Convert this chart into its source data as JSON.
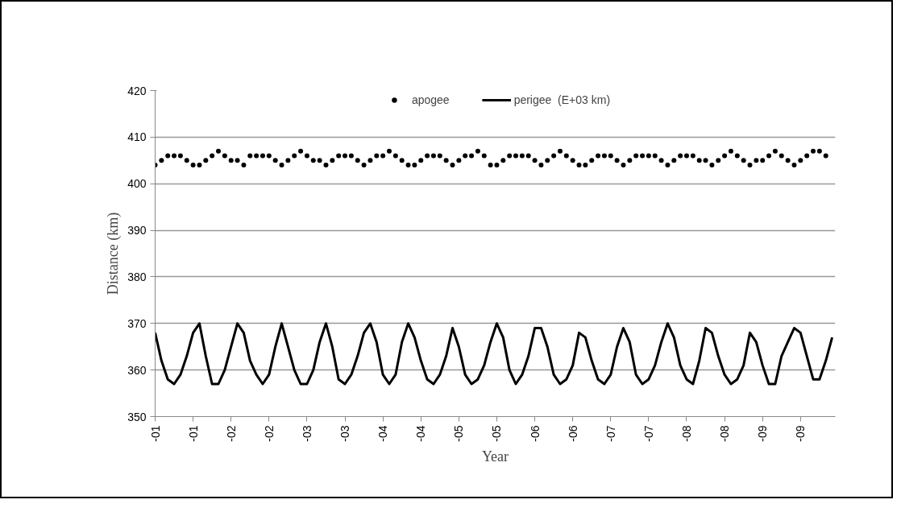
{
  "chart_data": {
    "type": "line",
    "xlabel": "Year",
    "ylabel": "Distance (km)",
    "categories": [
      "-01",
      null,
      null,
      null,
      null,
      null,
      "-01",
      null,
      null,
      null,
      null,
      null,
      "-02",
      null,
      null,
      null,
      null,
      null,
      "-02",
      null,
      null,
      null,
      null,
      null,
      "-03",
      null,
      null,
      null,
      null,
      null,
      "-03",
      null,
      null,
      null,
      null,
      null,
      "-04",
      null,
      null,
      null,
      null,
      null,
      "-04",
      null,
      null,
      null,
      null,
      null,
      "-05",
      null,
      null,
      null,
      null,
      null,
      "-05",
      null,
      null,
      null,
      null,
      null,
      "-06",
      null,
      null,
      null,
      null,
      null,
      "-06",
      null,
      null,
      null,
      null,
      null,
      "-07",
      null,
      null,
      null,
      null,
      null,
      "-07",
      null,
      null,
      null,
      null,
      null,
      "-08",
      null,
      null,
      null,
      null,
      null,
      "-08",
      null,
      null,
      null,
      null,
      null,
      "-09",
      null,
      null,
      null,
      null,
      null,
      "-09",
      null,
      null,
      null,
      null,
      null
    ],
    "series": [
      {
        "name": "apogee",
        "type": "scatter",
        "marker": "circle",
        "color": "#000000",
        "values": [
          404,
          405,
          406,
          406,
          406,
          405,
          404,
          404,
          405,
          406,
          407,
          406,
          405,
          405,
          404,
          406,
          406,
          406,
          406,
          405,
          404,
          405,
          406,
          407,
          406,
          405,
          405,
          404,
          405,
          406,
          406,
          406,
          405,
          404,
          405,
          406,
          406,
          407,
          406,
          405,
          404,
          404,
          405,
          406,
          406,
          406,
          405,
          404,
          405,
          406,
          406,
          407,
          406,
          404,
          404,
          405,
          406,
          406,
          406,
          406,
          405,
          404,
          405,
          406,
          407,
          406,
          405,
          404,
          404,
          405,
          406,
          406,
          406,
          405,
          404,
          405,
          406,
          406,
          406,
          406,
          405,
          404,
          405,
          406,
          406,
          406,
          405,
          405,
          404,
          405,
          406,
          407,
          406,
          405,
          404,
          405,
          405,
          406,
          407,
          406,
          405,
          404,
          405,
          406,
          407,
          407,
          406,
          null
        ]
      },
      {
        "name": "perigee  (E+03 km)",
        "line_style": "solid",
        "color": "#000000",
        "values": [
          368,
          362,
          358,
          357,
          359,
          363,
          368,
          370,
          363,
          357,
          357,
          360,
          365,
          370,
          368,
          362,
          359,
          357,
          359,
          365,
          370,
          365,
          360,
          357,
          357,
          360,
          366,
          370,
          365,
          358,
          357,
          359,
          363,
          368,
          370,
          366,
          359,
          357,
          359,
          366,
          370,
          367,
          362,
          358,
          357,
          359,
          363,
          369,
          365,
          359,
          357,
          358,
          361,
          366,
          370,
          367,
          360,
          357,
          359,
          363,
          369,
          369,
          365,
          359,
          357,
          358,
          361,
          368,
          367,
          362,
          358,
          357,
          359,
          365,
          369,
          366,
          359,
          357,
          358,
          361,
          366,
          370,
          367,
          361,
          358,
          357,
          362,
          369,
          368,
          363,
          359,
          357,
          358,
          361,
          368,
          366,
          361,
          357,
          357,
          363,
          366,
          369,
          368,
          363,
          358,
          358,
          362,
          367
        ]
      }
    ],
    "ylim": [
      350,
      420
    ],
    "yticks": [
      350,
      360,
      370,
      380,
      390,
      400,
      410,
      420
    ],
    "grid": "y",
    "legend": "top"
  }
}
